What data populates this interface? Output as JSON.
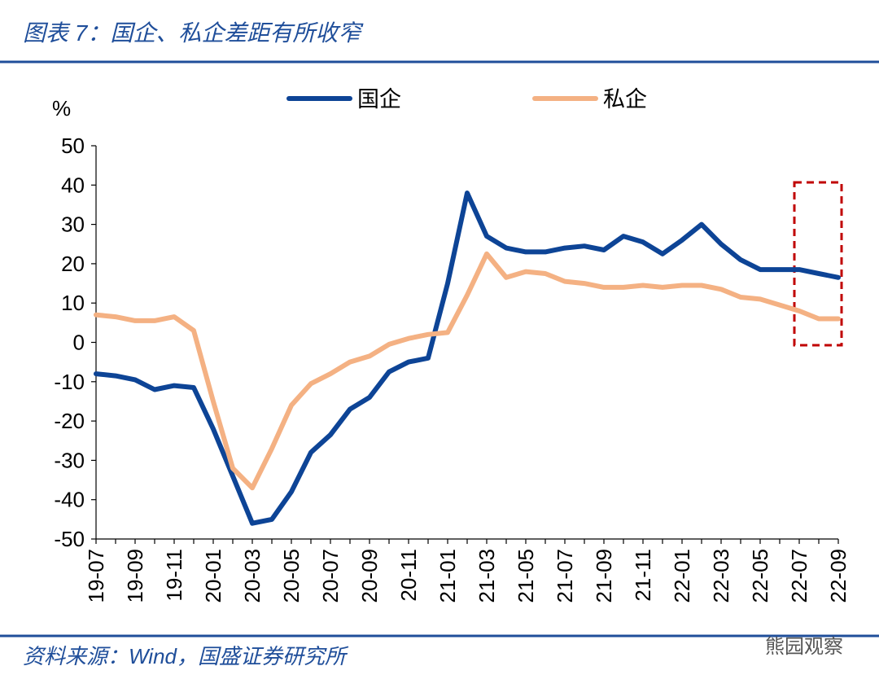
{
  "chart_data": {
    "type": "line",
    "title": "图表 7：国企、私企差距有所收窄",
    "y_unit": "%",
    "source": "资料来源：Wind，国盛证券研究所",
    "watermark": "熊园观察",
    "categories": [
      "19-07",
      null,
      "19-09",
      null,
      "19-11",
      null,
      "20-01",
      null,
      "20-03",
      null,
      "20-05",
      null,
      "20-07",
      null,
      "20-09",
      null,
      "20-11",
      null,
      "21-01",
      null,
      "21-03",
      null,
      "21-05",
      null,
      "21-07",
      null,
      "21-09",
      null,
      "21-11",
      null,
      "22-01",
      null,
      "22-03",
      null,
      "22-05",
      null,
      "22-07",
      null,
      "22-09"
    ],
    "series": [
      {
        "name": "国企",
        "color": "#0d4496",
        "values": [
          -8,
          -8.5,
          -9.5,
          -12,
          -11,
          -11.5,
          -22,
          -34,
          -46,
          -45,
          -38,
          -28,
          -23.5,
          -17,
          -14,
          -7.5,
          -5,
          -4,
          15,
          38,
          27,
          24,
          23,
          23,
          24,
          24.5,
          23.5,
          27,
          25.5,
          22.5,
          26,
          30,
          25,
          21,
          18.5,
          18.5,
          18.5,
          17.5,
          16.5
        ]
      },
      {
        "name": "私企",
        "color": "#f4b183",
        "values": [
          7,
          6.5,
          5.5,
          5.5,
          6.5,
          3,
          -15,
          -32,
          -37,
          -27,
          -16,
          -10.5,
          -8,
          -5,
          -3.5,
          -0.5,
          1,
          2,
          2.5,
          12,
          22.5,
          16.5,
          18,
          17.5,
          15.5,
          15,
          14,
          14,
          14.5,
          14,
          14.5,
          14.5,
          13.5,
          11.5,
          11,
          9.5,
          8,
          6,
          6
        ]
      }
    ],
    "ylim": [
      -50,
      50
    ],
    "yticks": [
      -50,
      -40,
      -30,
      -20,
      -10,
      0,
      10,
      20,
      30,
      40,
      50
    ],
    "legend": "top",
    "grid": false
  }
}
